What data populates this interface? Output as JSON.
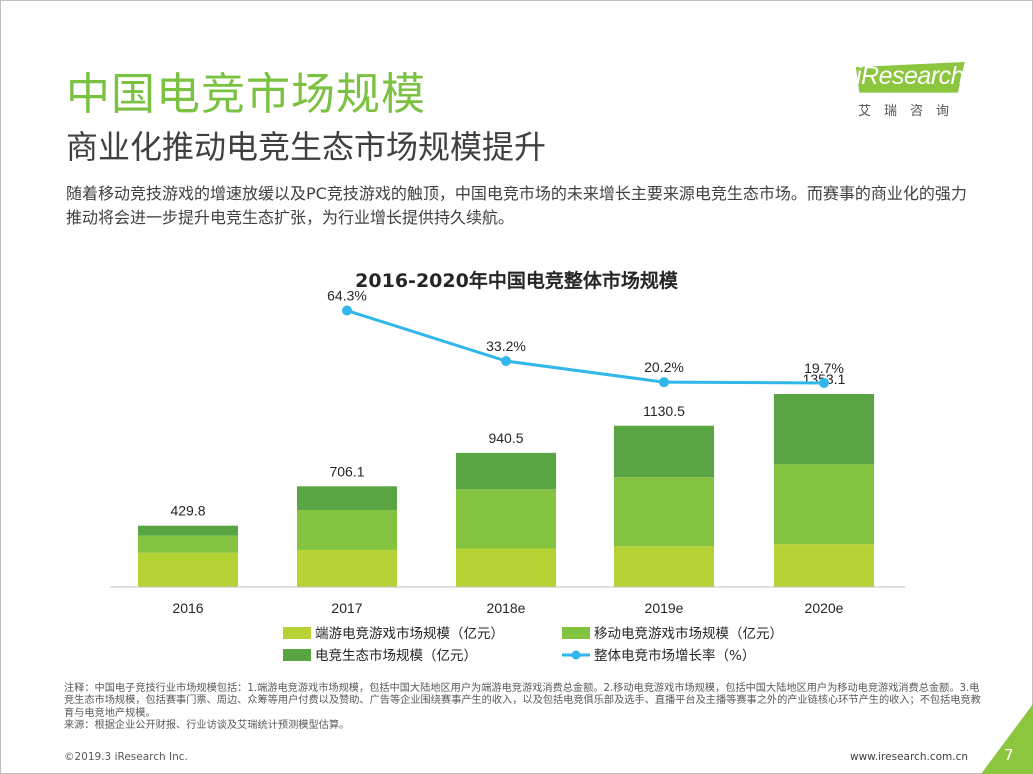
{
  "slide": {
    "title": "中国电竞市场规模",
    "subtitle": "商业化推动电竞生态市场规模提升",
    "intro": "随着移动竞技游戏的增速放缓以及PC竞技游戏的触顶，中国电竞市场的未来增长主要来源电竞生态市场。而赛事的商业化的强力推动将会进一步提升电竞生态扩张，为行业增长提供持久续航。",
    "notes": [
      "注释：中国电子竞技行业市场规模包括：1.端游电竞游戏市场规模，包括中国大陆地区用户为端游电竞游戏消费总金额。2.移动电竞游戏市场规模，包括中国大陆地区用户为移动电竞游戏消费总金额。3.电竞生态市场规模，包括赛事门票、周边、众筹等用户付费以及赞助、广告等企业围绕赛事产生的收入，以及包括电竞俱乐部及选手、直播平台及主播等赛事之外的产业链核心环节产生的收入；不包括电竞教育与电竞地产规模。",
      "来源：根据企业公开财报、行业访谈及艾瑞统计预测模型估算。"
    ],
    "copyright": "©2019.3 iResearch Inc.",
    "website": "www.iresearch.com.cn",
    "page_number": "7"
  },
  "logo": {
    "name": "iResearch",
    "sub": "艾瑞咨询"
  },
  "colors": {
    "title_green": "#7cc242",
    "pc": "#b5d334",
    "mobile": "#84c340",
    "eco": "#5aa543",
    "growth": "#31b7ea"
  },
  "chart_data": {
    "type": "bar",
    "stacked": true,
    "title": "2016-2020年中国电竞整体市场规模",
    "categories": [
      "2016",
      "2017",
      "2018e",
      "2019e",
      "2020e"
    ],
    "totals": [
      429.8,
      706.1,
      940.5,
      1130.5,
      1353.1
    ],
    "total_labels": [
      "429.8",
      "706.1",
      "940.5",
      "1130.5",
      "1353.1"
    ],
    "series": [
      {
        "name": "端游电竞游戏市场规模（亿元）",
        "values": [
          240,
          260,
          270,
          285,
          300
        ]
      },
      {
        "name": "移动电竞游戏市场规模（亿元）",
        "values": [
          120,
          280,
          415,
          485,
          560
        ]
      },
      {
        "name": "电竞生态市场规模（亿元）",
        "values": [
          69.8,
          166.1,
          255.5,
          360.5,
          493.1
        ]
      }
    ],
    "line": {
      "name": "整体电竞市场增长率（%）",
      "categories": [
        "2017",
        "2018e",
        "2019e",
        "2020e"
      ],
      "values": [
        64.3,
        33.2,
        20.2,
        19.7
      ],
      "labels": [
        "64.3%",
        "33.2%",
        "20.2%",
        "19.7%"
      ]
    },
    "ylim": [
      0,
      1500
    ],
    "xlabel": "",
    "ylabel": ""
  }
}
